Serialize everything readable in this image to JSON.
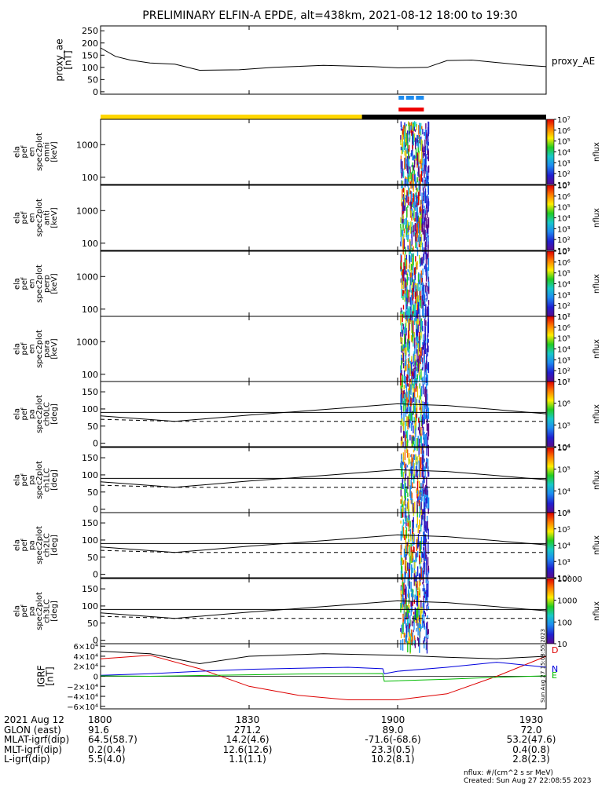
{
  "title": "PRELIMINARY ELFIN-A EPDE, alt=438km, 2021-08-12 18:00 to 19:30",
  "chart_data": {
    "type": "multi-panel-stack",
    "time_range": [
      "18:00",
      "19:30"
    ],
    "time_ticks": [
      "1800",
      "1830",
      "1900",
      "1930"
    ],
    "time_tick_minutes": [
      0,
      30,
      60,
      90
    ],
    "proxy_ae": {
      "ylabel_lines": [
        "proxy_ae",
        "[nT]"
      ],
      "legend": "proxy_AE",
      "yticks": [
        "250",
        "200",
        "150",
        "100",
        "50",
        "0"
      ],
      "ytick_values": [
        250,
        200,
        150,
        100,
        50,
        0
      ],
      "ylim": [
        -10,
        270
      ],
      "minutes": [
        0,
        3,
        6,
        10,
        15,
        20,
        28,
        35,
        45,
        55,
        60,
        66,
        70,
        75,
        80,
        85,
        90
      ],
      "values": [
        180,
        145,
        130,
        118,
        113,
        88,
        90,
        100,
        108,
        103,
        98,
        100,
        128,
        130,
        120,
        110,
        103
      ]
    },
    "flags": {
      "science_bar_color": "#1e8cf0",
      "science_segments_min": [
        [
          60.2,
          61.3
        ],
        [
          61.7,
          63.3
        ],
        [
          63.7,
          65.3
        ]
      ],
      "red_bar_color": "#ee0000",
      "red_segment_min": [
        60.2,
        65.3
      ],
      "day_color": "#ffd700",
      "night_color": "#000000",
      "day_range_min": [
        0,
        52.8
      ],
      "night_range_min": [
        52.8,
        90
      ]
    },
    "energy_panels": [
      {
        "ylabel_lines": [
          "ela",
          "pef",
          "en",
          "spec2plot",
          "omni",
          "[keV]"
        ]
      },
      {
        "ylabel_lines": [
          "ela",
          "pef",
          "en",
          "spec2plot",
          "anti",
          "[keV]"
        ]
      },
      {
        "ylabel_lines": [
          "ela",
          "pef",
          "en",
          "spec2plot",
          "perp",
          "[keV]"
        ]
      },
      {
        "ylabel_lines": [
          "ela",
          "pef",
          "en",
          "spec2plot",
          "para",
          "[keV]"
        ]
      }
    ],
    "energy_yticks": [
      "1000",
      "100"
    ],
    "energy_ytick_values": [
      1000,
      100
    ],
    "energy_ylim_log": [
      60,
      6000
    ],
    "energy_colorbar": {
      "label": "nflux",
      "ticks": [
        "10⁷",
        "10⁶",
        "10⁵",
        "10⁴",
        "10³",
        "10²",
        "10¹"
      ]
    },
    "pa_panels": [
      {
        "ylabel_lines": [
          "ela",
          "pef",
          "pa",
          "spec2plot",
          "ch0LC",
          "[deg]"
        ],
        "cbar_ticks": [
          "10⁷",
          "10⁶",
          "10⁵",
          "10⁴"
        ],
        "cbar_top_tick": "10⁷"
      },
      {
        "ylabel_lines": [
          "ela",
          "pef",
          "pa",
          "spec2plot",
          "ch1LC",
          "[deg]"
        ],
        "cbar_ticks": [
          "10⁶",
          "10⁵",
          "10⁴",
          "10³"
        ],
        "cbar_top_tick": ""
      },
      {
        "ylabel_lines": [
          "ela",
          "pef",
          "pa",
          "spec2plot",
          "ch2LC",
          "[deg]"
        ],
        "cbar_ticks": [
          "10⁶",
          "10⁵",
          "10⁴",
          "10³",
          "10²"
        ],
        "cbar_top_tick": "10⁶"
      },
      {
        "ylabel_lines": [
          "ela",
          "pef",
          "pa",
          "spec2plot",
          "ch3LC",
          "[deg]"
        ],
        "cbar_ticks": [
          "10000",
          "1000",
          "100",
          "10"
        ],
        "cbar_top_tick": ""
      }
    ],
    "pa_yticks": [
      "150",
      "100",
      "50",
      "0"
    ],
    "pa_ytick_values": [
      150,
      100,
      50,
      0
    ],
    "pa_ylim": [
      -10,
      180
    ],
    "pa_colorbar_label": "nflux",
    "loss_cone": {
      "minutes": [
        0,
        15,
        30,
        45,
        60,
        70,
        90
      ],
      "upper_deg": [
        80,
        64,
        82,
        98,
        115,
        110,
        86
      ],
      "lower_deg": [
        70,
        64,
        64,
        64,
        64,
        64,
        64
      ]
    },
    "pa_ref_deg": 90,
    "igrf": {
      "ylabel_lines": [
        "IGRF",
        "[nT]"
      ],
      "yticks": [
        "6×10⁴",
        "4×10⁴",
        "2×10⁴",
        "0",
        "−2×10⁴",
        "−4×10⁴",
        "−6×10⁴"
      ],
      "ytick_values": [
        60000,
        40000,
        20000,
        0,
        -20000,
        -40000,
        -60000
      ],
      "ylim": [
        -65000,
        65000
      ],
      "series": [
        {
          "name": "D",
          "color": "#dd0000",
          "minutes": [
            0,
            10,
            20,
            30,
            40,
            50,
            60,
            70,
            80,
            90
          ],
          "values": [
            35000,
            42000,
            15000,
            -20000,
            -38000,
            -47000,
            -47000,
            -35000,
            0,
            40000
          ]
        },
        {
          "name": "N",
          "color": "#0000dd",
          "minutes": [
            0,
            10,
            20,
            30,
            40,
            50,
            57,
            57.3,
            60,
            70,
            80,
            90
          ],
          "values": [
            2000,
            5000,
            10000,
            14000,
            16000,
            18000,
            15000,
            5000,
            10000,
            18000,
            28000,
            18000
          ]
        },
        {
          "name": "E",
          "color": "#00bb00",
          "minutes": [
            0,
            10,
            20,
            30,
            40,
            50,
            57,
            57.3,
            60,
            70,
            80,
            90
          ],
          "values": [
            1000,
            0,
            1500,
            3000,
            4500,
            5000,
            5500,
            -10000,
            -9000,
            -6000,
            -2000,
            1000
          ]
        },
        {
          "name": "",
          "color": "#000000",
          "minutes": [
            0,
            10,
            20,
            30,
            45,
            60,
            70,
            80,
            90
          ],
          "values": [
            50000,
            45000,
            25000,
            40000,
            45000,
            42000,
            38000,
            35000,
            40000
          ]
        }
      ]
    },
    "orbit_table": {
      "row_labels": [
        "2021 Aug 12",
        "GLON (east)",
        "MLAT-igrf(dip)",
        "MLT-igrf(dip)",
        "L-igrf(dip)"
      ],
      "columns": [
        [
          "1800",
          "91.6",
          "64.5(58.7)",
          "0.2(0.4)",
          "5.5(4.0)"
        ],
        [
          "1830",
          "271.2",
          "14.2(4.6)",
          "12.6(12.6)",
          "1.1(1.1)"
        ],
        [
          "1900",
          "89.0",
          "-71.6(-68.6)",
          "23.3(0.5)",
          "10.2(8.1)"
        ],
        [
          "1930",
          "72.0",
          "53.2(47.6)",
          "0.4(0.8)",
          "2.8(2.3)"
        ]
      ]
    },
    "footer_units": "nflux: #/(cm^2 s sr MeV)",
    "footer_created": "Created: Sun Aug 27 22:08:55 2023",
    "side_stamp": "Sun Aug 27 15:08:55 2023"
  }
}
